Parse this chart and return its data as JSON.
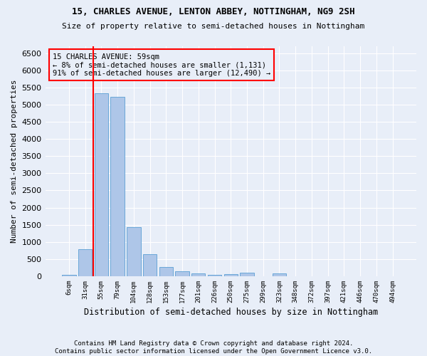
{
  "title1": "15, CHARLES AVENUE, LENTON ABBEY, NOTTINGHAM, NG9 2SH",
  "title2": "Size of property relative to semi-detached houses in Nottingham",
  "xlabel": "Distribution of semi-detached houses by size in Nottingham",
  "ylabel": "Number of semi-detached properties",
  "footnote": "Contains HM Land Registry data © Crown copyright and database right 2024.\nContains public sector information licensed under the Open Government Licence v3.0.",
  "categories": [
    "6sqm",
    "31sqm",
    "55sqm",
    "79sqm",
    "104sqm",
    "128sqm",
    "153sqm",
    "177sqm",
    "201sqm",
    "226sqm",
    "250sqm",
    "275sqm",
    "299sqm",
    "323sqm",
    "348sqm",
    "372sqm",
    "397sqm",
    "421sqm",
    "446sqm",
    "470sqm",
    "494sqm"
  ],
  "values": [
    30,
    790,
    5340,
    5220,
    1420,
    640,
    270,
    145,
    85,
    50,
    60,
    95,
    0,
    75,
    0,
    0,
    0,
    0,
    0,
    0,
    0
  ],
  "bar_color": "#aec6e8",
  "bar_edge_color": "#5a9fd4",
  "vline_x_index": 1.5,
  "annotation_text": "15 CHARLES AVENUE: 59sqm\n← 8% of semi-detached houses are smaller (1,131)\n91% of semi-detached houses are larger (12,490) →",
  "ylim": [
    0,
    6700
  ],
  "yticks": [
    0,
    500,
    1000,
    1500,
    2000,
    2500,
    3000,
    3500,
    4000,
    4500,
    5000,
    5500,
    6000,
    6500
  ],
  "bg_color": "#e8eef8",
  "grid_color": "#ffffff"
}
